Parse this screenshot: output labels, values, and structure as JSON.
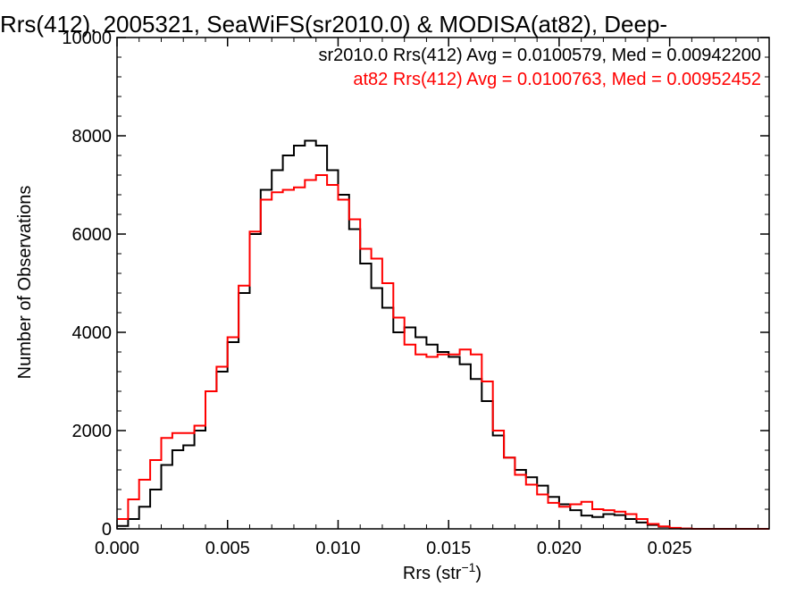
{
  "chart_data": {
    "type": "line",
    "title": "Rrs(412), 2005321, SeaWiFS(sr2010.0) & MODISA(at82), Deep-",
    "xlabel": "Rrs (str",
    "xlabel_sup": "−1",
    "xlabel_end": ")",
    "ylabel": "Number of Observations",
    "xlim": [
      0.0,
      0.0295
    ],
    "ylim": [
      0,
      10000
    ],
    "grid": false,
    "x_ticks": [
      0.0,
      0.005,
      0.01,
      0.015,
      0.02,
      0.025
    ],
    "x_tick_labels": [
      "0.000",
      "0.005",
      "0.010",
      "0.015",
      "0.020",
      "0.025"
    ],
    "y_ticks": [
      0,
      2000,
      4000,
      6000,
      8000,
      10000
    ],
    "y_tick_labels": [
      "0",
      "2000",
      "4000",
      "6000",
      "8000",
      "10000"
    ],
    "series": [
      {
        "name": "sr2010.0 Rrs(412) Avg = 0.0100579, Med = 0.00942200",
        "color": "#000000",
        "points": [
          [
            0.0,
            60
          ],
          [
            0.0005,
            200
          ],
          [
            0.001,
            450
          ],
          [
            0.0015,
            800
          ],
          [
            0.002,
            1300
          ],
          [
            0.0025,
            1600
          ],
          [
            0.003,
            1700
          ],
          [
            0.0035,
            2000
          ],
          [
            0.004,
            2800
          ],
          [
            0.0045,
            3200
          ],
          [
            0.005,
            3800
          ],
          [
            0.0055,
            4800
          ],
          [
            0.006,
            6000
          ],
          [
            0.0065,
            6900
          ],
          [
            0.007,
            7300
          ],
          [
            0.0075,
            7600
          ],
          [
            0.008,
            7800
          ],
          [
            0.0085,
            7900
          ],
          [
            0.009,
            7800
          ],
          [
            0.0095,
            7300
          ],
          [
            0.01,
            6800
          ],
          [
            0.0105,
            6100
          ],
          [
            0.011,
            5400
          ],
          [
            0.0115,
            4900
          ],
          [
            0.012,
            4500
          ],
          [
            0.0125,
            4000
          ],
          [
            0.013,
            4100
          ],
          [
            0.0135,
            3900
          ],
          [
            0.014,
            3750
          ],
          [
            0.0145,
            3600
          ],
          [
            0.015,
            3500
          ],
          [
            0.0155,
            3350
          ],
          [
            0.016,
            3050
          ],
          [
            0.0165,
            2600
          ],
          [
            0.017,
            1900
          ],
          [
            0.0175,
            1450
          ],
          [
            0.018,
            1200
          ],
          [
            0.0185,
            1050
          ],
          [
            0.019,
            880
          ],
          [
            0.0195,
            650
          ],
          [
            0.02,
            500
          ],
          [
            0.0205,
            380
          ],
          [
            0.021,
            270
          ],
          [
            0.0215,
            240
          ],
          [
            0.022,
            300
          ],
          [
            0.0225,
            280
          ],
          [
            0.023,
            200
          ],
          [
            0.0235,
            130
          ],
          [
            0.024,
            80
          ],
          [
            0.0245,
            40
          ],
          [
            0.025,
            15
          ],
          [
            0.0255,
            5
          ],
          [
            0.026,
            0
          ],
          [
            0.0295,
            0
          ]
        ]
      },
      {
        "name": "at82 Rrs(412) Avg = 0.0100763, Med = 0.00952452",
        "color": "#ff0000",
        "points": [
          [
            0.0,
            200
          ],
          [
            0.0005,
            600
          ],
          [
            0.001,
            1000
          ],
          [
            0.0015,
            1400
          ],
          [
            0.002,
            1850
          ],
          [
            0.0025,
            1950
          ],
          [
            0.003,
            1950
          ],
          [
            0.0035,
            2100
          ],
          [
            0.004,
            2800
          ],
          [
            0.0045,
            3300
          ],
          [
            0.005,
            3900
          ],
          [
            0.0055,
            4950
          ],
          [
            0.006,
            6050
          ],
          [
            0.0065,
            6700
          ],
          [
            0.007,
            6850
          ],
          [
            0.0075,
            6900
          ],
          [
            0.008,
            6950
          ],
          [
            0.0085,
            7100
          ],
          [
            0.009,
            7200
          ],
          [
            0.0095,
            7000
          ],
          [
            0.01,
            6700
          ],
          [
            0.0105,
            6300
          ],
          [
            0.011,
            5700
          ],
          [
            0.0115,
            5500
          ],
          [
            0.012,
            5000
          ],
          [
            0.0125,
            4300
          ],
          [
            0.013,
            3750
          ],
          [
            0.0135,
            3550
          ],
          [
            0.014,
            3500
          ],
          [
            0.0145,
            3550
          ],
          [
            0.015,
            3550
          ],
          [
            0.0155,
            3650
          ],
          [
            0.016,
            3550
          ],
          [
            0.0165,
            3000
          ],
          [
            0.017,
            2000
          ],
          [
            0.0175,
            1450
          ],
          [
            0.018,
            1100
          ],
          [
            0.0185,
            900
          ],
          [
            0.019,
            700
          ],
          [
            0.0195,
            530
          ],
          [
            0.02,
            450
          ],
          [
            0.0205,
            500
          ],
          [
            0.021,
            550
          ],
          [
            0.0215,
            400
          ],
          [
            0.022,
            380
          ],
          [
            0.0225,
            350
          ],
          [
            0.023,
            300
          ],
          [
            0.0235,
            200
          ],
          [
            0.024,
            100
          ],
          [
            0.0245,
            50
          ],
          [
            0.025,
            20
          ],
          [
            0.0255,
            8
          ],
          [
            0.026,
            0
          ],
          [
            0.0295,
            0
          ]
        ]
      }
    ]
  }
}
